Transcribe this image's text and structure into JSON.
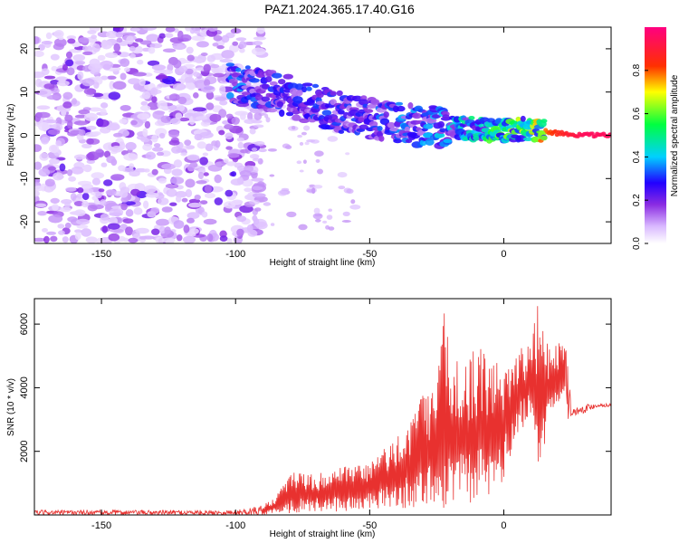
{
  "title": "PAZ1.2024.365.17.40.G16",
  "chart_data": [
    {
      "type": "heatmap",
      "title": "PAZ1.2024.365.17.40.G16",
      "xlabel": "Height of straight line (km)",
      "ylabel": "Frequency (Hz)",
      "xlim": [
        -175,
        40
      ],
      "ylim": [
        -25,
        25
      ],
      "x_ticks": [
        -150,
        -100,
        -50,
        0
      ],
      "y_ticks": [
        -20,
        -10,
        0,
        10,
        20
      ],
      "colorbar": {
        "label": "Normalized spectral amplitude",
        "range": [
          0,
          1
        ],
        "ticks": [
          0.0,
          0.2,
          0.4,
          0.6,
          0.8
        ],
        "colormap": "white-purple-blue-cyan-green-yellow-red-pink"
      },
      "ridge": {
        "x": [
          -100,
          -90,
          -80,
          -70,
          -60,
          -50,
          -40,
          -30,
          -20,
          -10,
          0,
          10,
          20,
          30,
          40
        ],
        "y": [
          12,
          11,
          9,
          7,
          5,
          4,
          3,
          2,
          2,
          1.5,
          1,
          1.5,
          0.5,
          0,
          0
        ],
        "amplitude": [
          0.35,
          0.3,
          0.3,
          0.3,
          0.3,
          0.3,
          0.35,
          0.35,
          0.4,
          0.5,
          0.6,
          0.7,
          0.85,
          0.95,
          0.95
        ]
      },
      "grid": false
    },
    {
      "type": "line",
      "xlabel": "Height of straight line (km)",
      "ylabel": "SNR (10 * v/v)",
      "xlim": [
        -175,
        40
      ],
      "ylim": [
        0,
        6800
      ],
      "x_ticks": [
        -150,
        -100,
        -50,
        0
      ],
      "y_ticks": [
        2000,
        4000,
        6000
      ],
      "series": [
        {
          "color": "#e8312f",
          "envelope": {
            "x": [
              -175,
              -100,
              -90,
              -85,
              -80,
              -70,
              -60,
              -50,
              -40,
              -30,
              -25,
              -22,
              -20,
              -15,
              -10,
              -5,
              0,
              5,
              10,
              13,
              17,
              20,
              23,
              24,
              25,
              30,
              35,
              40
            ],
            "low": [
              0,
              0,
              0,
              50,
              50,
              100,
              100,
              150,
              200,
              200,
              300,
              150,
              200,
              300,
              400,
              500,
              1000,
              2500,
              3000,
              1200,
              3000,
              3500,
              4000,
              3000,
              3100,
              3200,
              3400,
              3400
            ],
            "high": [
              150,
              150,
              300,
              600,
              1400,
              1300,
              1500,
              1700,
              2500,
              3900,
              4300,
              6600,
              5000,
              5000,
              5300,
              5000,
              5000,
              5300,
              5400,
              6800,
              5300,
              5400,
              5500,
              5400,
              3300,
              3500,
              3500,
              3500
            ]
          }
        }
      ],
      "grid": false
    }
  ]
}
